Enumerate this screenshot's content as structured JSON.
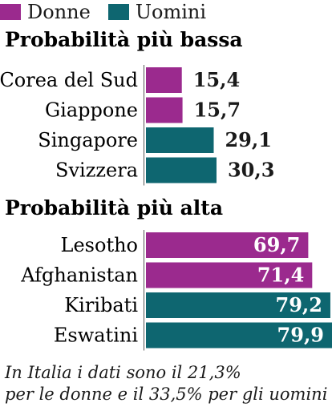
{
  "legend": [
    {
      "label": "Donne",
      "color": "#9b2a8e"
    },
    {
      "label": "Uomini",
      "color": "#0e6670"
    }
  ],
  "chart_data": {
    "type": "bar",
    "orientation": "horizontal",
    "xlim": [
      0,
      79.9
    ],
    "groups": [
      {
        "title": "Probabilità più bassa",
        "rows": [
          {
            "category": "Corea del Sud",
            "value": 15.4,
            "value_label": "15,4",
            "series": "Donne"
          },
          {
            "category": "Giappone",
            "value": 15.7,
            "value_label": "15,7",
            "series": "Donne"
          },
          {
            "category": "Singapore",
            "value": 29.1,
            "value_label": "29,1",
            "series": "Uomini"
          },
          {
            "category": "Svizzera",
            "value": 30.3,
            "value_label": "30,3",
            "series": "Uomini"
          }
        ]
      },
      {
        "title": "Probabilità più alta",
        "rows": [
          {
            "category": "Lesotho",
            "value": 69.7,
            "value_label": "69,7",
            "series": "Donne"
          },
          {
            "category": "Afghanistan",
            "value": 71.4,
            "value_label": "71,4",
            "series": "Donne"
          },
          {
            "category": "Kiribati",
            "value": 79.2,
            "value_label": "79,2",
            "series": "Uomini"
          },
          {
            "category": "Eswatini",
            "value": 79.9,
            "value_label": "79,9",
            "series": "Uomini"
          }
        ]
      }
    ]
  },
  "note": {
    "line1": "In Italia i dati sono il 21,3%",
    "line2": "per le donne e il 33,5% per gli uomini"
  }
}
